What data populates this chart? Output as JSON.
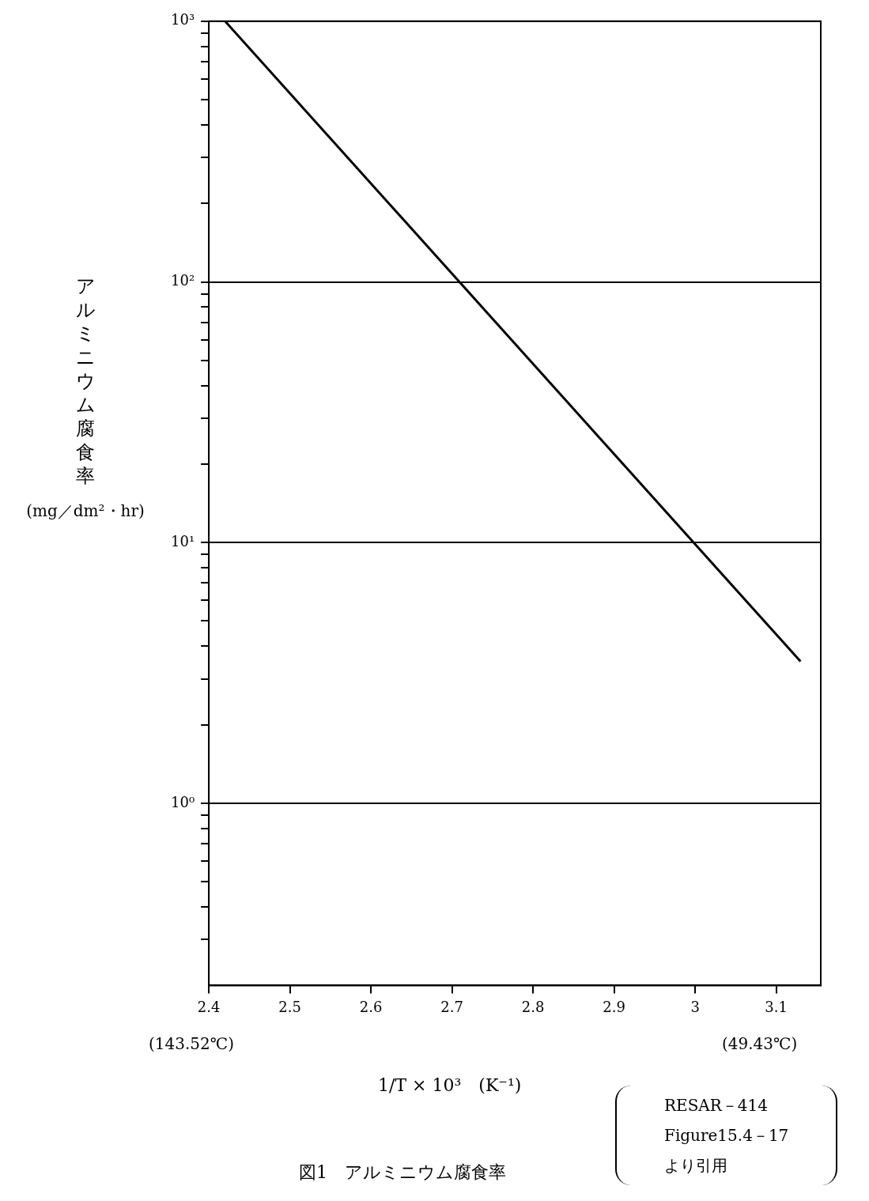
{
  "chart_data": {
    "type": "line",
    "title": "図1　アルミニウム腐食率",
    "xlabel": "1/T × 10³　(K⁻¹)",
    "ylabel": "アルミニウム腐食率 (mg／dm²・hr)",
    "series": [
      {
        "color": "#000000",
        "x": [
          2.42,
          3.13
        ],
        "values": [
          1000,
          3.5
        ]
      }
    ],
    "xlim": [
      2.4,
      3.155
    ],
    "xticks": [
      2.4,
      2.5,
      2.6,
      2.7,
      2.8,
      2.9,
      3,
      3.1
    ],
    "ylim": [
      0.2,
      1000
    ],
    "yticks": [
      {
        "value": 0.3,
        "label": null
      },
      {
        "value": 0.4,
        "label": null
      },
      {
        "value": 0.5,
        "label": null
      },
      {
        "value": 0.6,
        "label": null
      },
      {
        "value": 0.7,
        "label": null
      },
      {
        "value": 0.8,
        "label": null
      },
      {
        "value": 0.9,
        "label": null
      },
      {
        "value": 1,
        "label": "10⁰"
      },
      {
        "value": 2,
        "label": null
      },
      {
        "value": 3,
        "label": null
      },
      {
        "value": 4,
        "label": null
      },
      {
        "value": 5,
        "label": null
      },
      {
        "value": 6,
        "label": null
      },
      {
        "value": 7,
        "label": null
      },
      {
        "value": 8,
        "label": null
      },
      {
        "value": 9,
        "label": null
      },
      {
        "value": 10,
        "label": "10¹"
      },
      {
        "value": 20,
        "label": null
      },
      {
        "value": 30,
        "label": null
      },
      {
        "value": 40,
        "label": null
      },
      {
        "value": 50,
        "label": null
      },
      {
        "value": 60,
        "label": null
      },
      {
        "value": 70,
        "label": null
      },
      {
        "value": 80,
        "label": null
      },
      {
        "value": 90,
        "label": null
      },
      {
        "value": 100,
        "label": "10²"
      },
      {
        "value": 200,
        "label": null
      },
      {
        "value": 300,
        "label": null
      },
      {
        "value": 400,
        "label": null
      },
      {
        "value": 500,
        "label": null
      },
      {
        "value": 600,
        "label": null
      },
      {
        "value": 700,
        "label": null
      },
      {
        "value": 800,
        "label": null
      },
      {
        "value": 900,
        "label": null
      },
      {
        "value": 1000,
        "label": "10³"
      }
    ],
    "log": "y",
    "grid": "y",
    "legend": false,
    "marker": "none",
    "line_style": "solid",
    "annotations": [
      "(143.52℃)",
      "(49.43℃)",
      "RESAR－414\nFigure15.4－17\nより引用"
    ]
  }
}
